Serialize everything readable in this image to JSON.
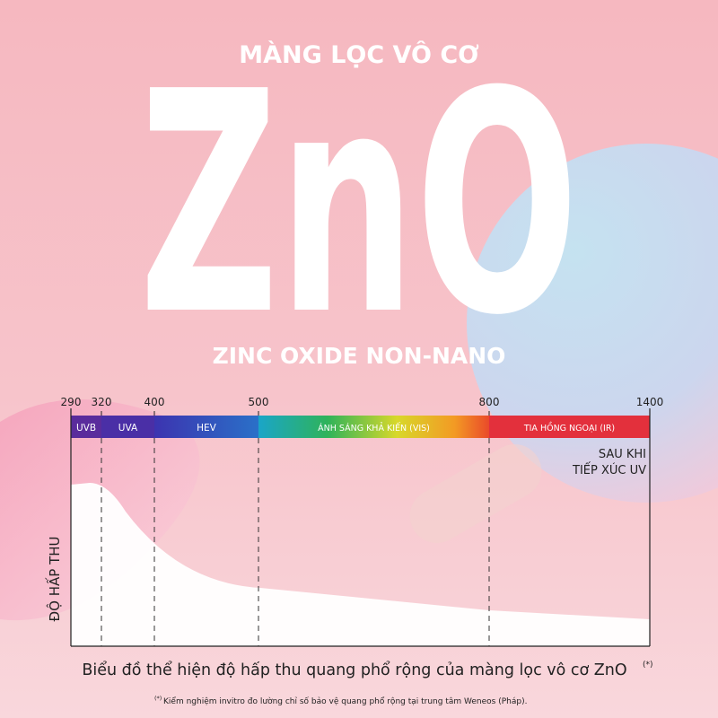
{
  "header": {
    "subtitle": "MÀNG LỌC VÔ CƠ",
    "title": "ZnO",
    "tagline": "ZINC OXIDE NON-NANO"
  },
  "spectrum": {
    "ticks": [
      290,
      320,
      400,
      500,
      800,
      1400
    ],
    "bands": [
      "UVB",
      "UVA",
      "HEV",
      "ÁNH SÁNG KHẢ KIẾN (VIS)",
      "TIA HỒNG NGOẠI (IR)"
    ]
  },
  "chart": {
    "y_label": "ĐỘ HẤP THU",
    "series_label": [
      "SAU KHI",
      "TIẾP XÚC UV"
    ]
  },
  "caption": {
    "text": "Biểu đồ thể hiện độ hấp thu quang phổ rộng của màng lọc vô cơ ZnO",
    "mark": "(*)"
  },
  "footnote": {
    "mark": "(*)",
    "text": "Kiểm nghiệm invitro đo lường chỉ số bảo vệ quang phổ rộng tại trung tâm Weneos (Pháp)."
  }
}
